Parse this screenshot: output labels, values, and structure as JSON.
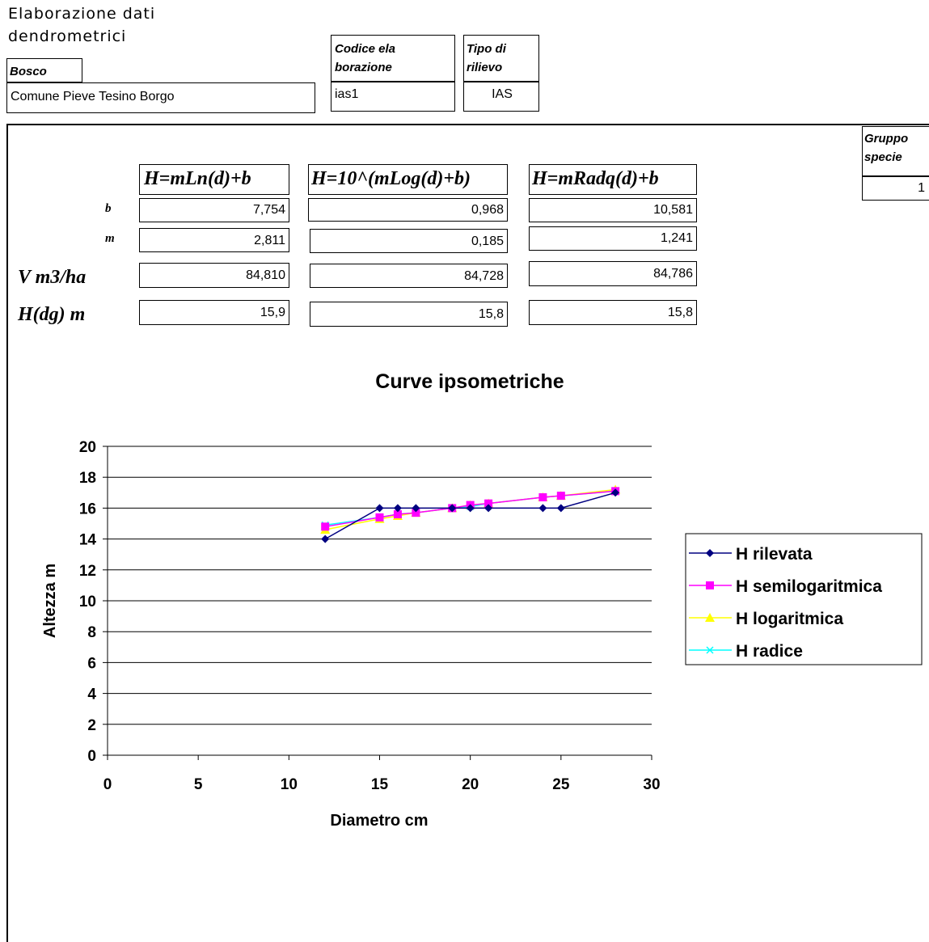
{
  "header": {
    "title_line1": "Elaborazione dati",
    "title_line2": "dendrometrici",
    "bosco_label": "Bosco",
    "bosco_value": "Comune Pieve Tesino Borgo",
    "codice_label_l1": "Codice ela",
    "codice_label_l2": "borazione",
    "codice_value": "ias1",
    "tipo_label_l1": "Tipo di",
    "tipo_label_l2": "rilievo",
    "tipo_value": "IAS",
    "gruppo_label_l1": "Gruppo",
    "gruppo_label_l2": "specie",
    "gruppo_value": "1"
  },
  "table": {
    "formulas": [
      "H=mLn(d)+b",
      "H=10^(mLog(d)+b)",
      "H=mRadq(d)+b"
    ],
    "row_labels": [
      "b",
      "m",
      "V m3/ha",
      "H(dg) m"
    ],
    "rows": [
      [
        "7,754",
        "0,968",
        "10,581"
      ],
      [
        "2,811",
        "0,185",
        "1,241"
      ],
      [
        "84,810",
        "84,728",
        "84,786"
      ],
      [
        "15,9",
        "15,8",
        "15,8"
      ]
    ]
  },
  "chart_data": {
    "type": "line",
    "title": "Curve ipsometriche",
    "xlabel": "Diametro cm",
    "ylabel": "Altezza m",
    "xlim": [
      0,
      30
    ],
    "ylim": [
      0,
      20
    ],
    "xticks": [
      0,
      5,
      10,
      15,
      20,
      25,
      30
    ],
    "yticks": [
      0,
      2,
      4,
      6,
      8,
      10,
      12,
      14,
      16,
      18,
      20
    ],
    "grid": "horizontal",
    "legend_position": "right",
    "x": [
      12,
      15,
      16,
      17,
      19,
      20,
      21,
      24,
      25,
      28
    ],
    "series": [
      {
        "name": "H rilevata",
        "color": "#000080",
        "marker": "diamond",
        "values": [
          14,
          16,
          16,
          16,
          16,
          16,
          16,
          16,
          16,
          17
        ]
      },
      {
        "name": "H semilogaritmica",
        "color": "#ff00ff",
        "marker": "square",
        "values": [
          14.8,
          15.4,
          15.6,
          15.7,
          16.0,
          16.2,
          16.3,
          16.7,
          16.8,
          17.1
        ]
      },
      {
        "name": "H logaritmica",
        "color": "#ffff00",
        "marker": "triangle",
        "values": [
          14.6,
          15.3,
          15.5,
          15.7,
          16.0,
          16.2,
          16.3,
          16.7,
          16.8,
          17.2
        ]
      },
      {
        "name": "H radice",
        "color": "#00ffff",
        "marker": "x",
        "values": [
          14.9,
          15.4,
          15.6,
          15.7,
          16.0,
          16.1,
          16.3,
          16.7,
          16.8,
          17.1
        ]
      }
    ]
  }
}
